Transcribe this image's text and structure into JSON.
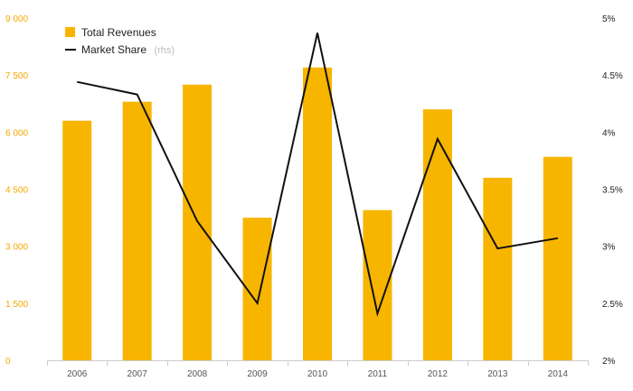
{
  "chart_data": {
    "type": "bar",
    "categories": [
      "2006",
      "2007",
      "2008",
      "2009",
      "2010",
      "2011",
      "2012",
      "2013",
      "2014"
    ],
    "series": [
      {
        "name": "Total Revenues",
        "type": "bar",
        "axis": "left",
        "color": "#f7b500",
        "values": [
          6300,
          6800,
          7250,
          3750,
          7700,
          3950,
          6600,
          4800,
          5350
        ]
      },
      {
        "name": "Market Share",
        "name_suffix": "(rhs)",
        "type": "line",
        "axis": "right",
        "color": "#111111",
        "values": [
          4.44,
          4.33,
          3.22,
          2.5,
          4.87,
          2.41,
          3.94,
          2.98,
          3.07
        ]
      }
    ],
    "left_axis": {
      "ylim": [
        0,
        9000
      ],
      "ticks": [
        0,
        1500,
        3000,
        4500,
        6000,
        7500,
        9000
      ],
      "tick_labels": [
        "0",
        "1 500",
        "3 000",
        "4 500",
        "6 000",
        "7 500",
        "9 000"
      ],
      "color": "#f5a800"
    },
    "right_axis": {
      "ylim": [
        2,
        5
      ],
      "ticks": [
        2,
        2.5,
        3,
        3.5,
        4,
        4.5,
        5
      ],
      "tick_labels": [
        "2%",
        "2.5%",
        "3%",
        "3.5%",
        "4%",
        "4.5%",
        "5%"
      ],
      "color": "#222222"
    },
    "grid": false,
    "legend_position": "top-left"
  }
}
